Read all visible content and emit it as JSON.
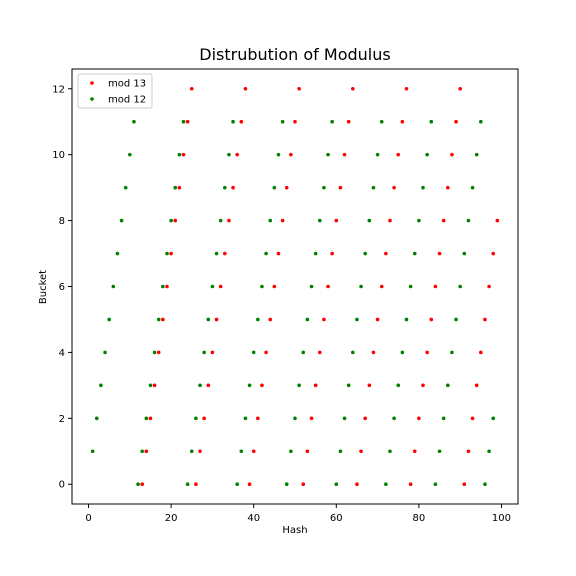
{
  "chart_data": {
    "type": "scatter",
    "title": "Distrubution of Modulus",
    "xlabel": "Hash",
    "ylabel": "Bucket",
    "xlim": [
      -4,
      104
    ],
    "ylim": [
      -0.6,
      12.6
    ],
    "xticks": [
      0,
      20,
      40,
      60,
      80,
      100
    ],
    "yticks": [
      0,
      2,
      4,
      6,
      8,
      10,
      12
    ],
    "grid": false,
    "legend_placement": "top-left",
    "series": [
      {
        "name": "mod 13",
        "color": "#ff0000",
        "modulus": 13,
        "x_range": [
          13,
          99
        ]
      },
      {
        "name": "mod 12",
        "color": "#008000",
        "modulus": 12,
        "x_range": [
          1,
          98
        ]
      }
    ]
  }
}
